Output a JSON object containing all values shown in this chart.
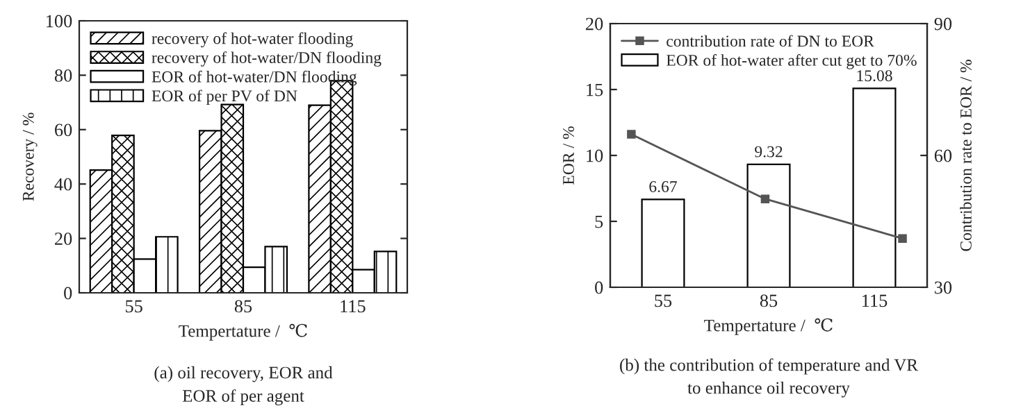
{
  "chart_data": [
    {
      "type": "bar",
      "xlabel": "Tempertature /  ℃",
      "ylabel": "Recovery / %",
      "categories": [
        "55",
        "85",
        "115"
      ],
      "ylim": [
        0,
        100
      ],
      "yticks": [
        0,
        20,
        40,
        60,
        80,
        100
      ],
      "legend": "top left",
      "series": [
        {
          "name": "recovery of hot-water flooding",
          "color": "#000000",
          "values": [
            45.1,
            59.6,
            69
          ]
        },
        {
          "name": "recovery of hot-water/DN flooding",
          "color": "#000000",
          "values": [
            57.9,
            69.2,
            78
          ]
        },
        {
          "name": "EOR of hot-water/DN flooding",
          "color": "#000000",
          "values": [
            12.4,
            9.4,
            8.5
          ]
        },
        {
          "name": "EOR of per PV of DN",
          "color": "#000000",
          "values": [
            20.6,
            17,
            15.2
          ]
        }
      ],
      "annotations": [
        "(a) oil recovery, EOR and\nEOR of per agent"
      ]
    },
    {
      "type": "bar",
      "xlabel": "Tempertature /  ℃",
      "ylabel": "EOR / %",
      "y2label": "Contribution rate to EOR / %",
      "xlim": [
        40,
        130
      ],
      "xticks": [
        55,
        85,
        115
      ],
      "ylim": [
        0,
        20
      ],
      "yticks": [
        0,
        5,
        10,
        15,
        20
      ],
      "y2lim": [
        30,
        90
      ],
      "y2ticks": [
        30,
        60,
        90
      ],
      "legend": "top left",
      "series": [
        {
          "name": "contribution rate of DN to EOR",
          "type": "line",
          "axis": "y2",
          "color": "#555555",
          "marker": "square",
          "line_style": "solid",
          "x": [
            46,
            84,
            123
          ],
          "values": [
            64.8,
            50.1,
            41.1
          ]
        },
        {
          "name": "EOR of hot-water after cut get to 70%",
          "type": "bar",
          "color": "#000000",
          "x": [
            55,
            85,
            115
          ],
          "values": [
            6.67,
            9.32,
            15.08
          ],
          "data_labels": true
        }
      ],
      "annotations": [
        "(b) the contribution of temperature and VR\nto enhance oil recovery"
      ]
    }
  ]
}
